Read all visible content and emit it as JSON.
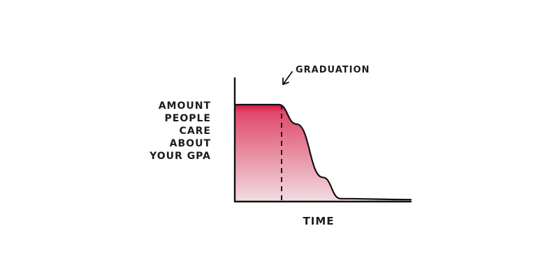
{
  "chart_data": {
    "type": "area",
    "ylabel_lines": [
      "AMOUNT",
      "PEOPLE",
      "CARE",
      "ABOUT",
      "YOUR GPA"
    ],
    "xlabel": "TIME",
    "annotations": [
      {
        "text": "GRADUATION",
        "x": 0.25
      }
    ],
    "x": [
      0,
      0.25,
      0.35,
      0.5,
      0.6,
      1.0
    ],
    "y": [
      1,
      1,
      0.8,
      0.25,
      0.03,
      0.02
    ],
    "xlim": [
      0,
      1
    ],
    "ylim": [
      0,
      1
    ],
    "grid": false,
    "colors": {
      "fill_top": "#d8103f",
      "fill_bottom": "#f1dde2",
      "line": "#111111"
    }
  }
}
